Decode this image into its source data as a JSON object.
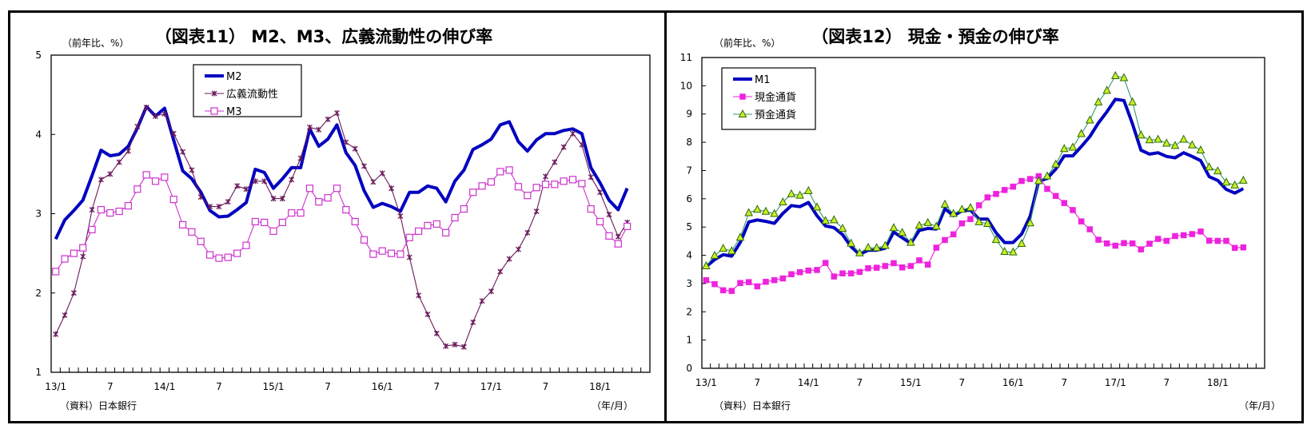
{
  "chart_data": [
    {
      "type": "line",
      "title": "（図表11） M2、M3、広義流動性の伸び率",
      "ylabel": "（前年比、%）",
      "xlabel": "（年/月）",
      "source": "（資料）日本銀行",
      "ylim": [
        1,
        5
      ],
      "yticks": [
        "1",
        "2",
        "3",
        "4",
        "5"
      ],
      "xtick_labels": [
        "13/1",
        "7",
        "14/1",
        "7",
        "15/1",
        "7",
        "16/1",
        "7",
        "17/1",
        "7",
        "18/1"
      ],
      "x_start": "2013/1",
      "x_end": "2018/4",
      "legend_position": "top-left",
      "series": [
        {
          "name": "M2",
          "color": "#0000c0",
          "marker": "none",
          "values": [
            2.68,
            2.92,
            3.04,
            3.17,
            3.48,
            3.8,
            3.73,
            3.75,
            3.85,
            4.08,
            4.35,
            4.23,
            4.33,
            3.93,
            3.54,
            3.44,
            3.27,
            3.04,
            2.96,
            2.97,
            3.05,
            3.14,
            3.56,
            3.52,
            3.32,
            3.44,
            3.58,
            3.58,
            4.07,
            3.85,
            3.94,
            4.12,
            3.77,
            3.61,
            3.29,
            3.08,
            3.13,
            3.09,
            3.03,
            3.27,
            3.27,
            3.35,
            3.32,
            3.15,
            3.41,
            3.55,
            3.81,
            3.87,
            3.94,
            4.12,
            4.16,
            3.91,
            3.79,
            3.93,
            4.01,
            4.01,
            4.05,
            4.07,
            4.01,
            3.58,
            3.39,
            3.17,
            3.05,
            3.32
          ]
        },
        {
          "name": "広義流動性",
          "color": "#6a1a5a",
          "marker": "star",
          "values": [
            1.48,
            1.72,
            2.0,
            2.46,
            3.05,
            3.43,
            3.5,
            3.65,
            3.79,
            4.1,
            4.34,
            4.23,
            4.26,
            4.01,
            3.78,
            3.55,
            3.21,
            3.09,
            3.09,
            3.15,
            3.35,
            3.31,
            3.41,
            3.41,
            3.19,
            3.19,
            3.43,
            3.7,
            4.09,
            4.06,
            4.19,
            4.27,
            3.9,
            3.82,
            3.6,
            3.4,
            3.51,
            3.32,
            2.97,
            2.45,
            1.97,
            1.73,
            1.49,
            1.33,
            1.35,
            1.32,
            1.63,
            1.9,
            2.02,
            2.27,
            2.43,
            2.55,
            2.76,
            3.03,
            3.47,
            3.65,
            3.84,
            4.01,
            3.87,
            3.46,
            3.27,
            2.99,
            2.71,
            2.89
          ]
        },
        {
          "name": "M3",
          "color": "#cc33cc",
          "marker": "open-square",
          "values": [
            2.27,
            2.43,
            2.5,
            2.57,
            2.8,
            3.05,
            3.01,
            3.03,
            3.1,
            3.31,
            3.49,
            3.41,
            3.46,
            3.18,
            2.86,
            2.77,
            2.65,
            2.48,
            2.44,
            2.45,
            2.5,
            2.6,
            2.9,
            2.89,
            2.78,
            2.89,
            3.01,
            3.01,
            3.32,
            3.15,
            3.2,
            3.32,
            3.05,
            2.9,
            2.67,
            2.49,
            2.53,
            2.5,
            2.49,
            2.7,
            2.78,
            2.85,
            2.87,
            2.76,
            2.95,
            3.06,
            3.27,
            3.35,
            3.4,
            3.53,
            3.55,
            3.34,
            3.23,
            3.33,
            3.37,
            3.37,
            3.41,
            3.43,
            3.38,
            3.06,
            2.9,
            2.72,
            2.62,
            2.84
          ]
        }
      ]
    },
    {
      "type": "line",
      "title": "（図表12） 現金・預金の伸び率",
      "ylabel": "（前年比、%）",
      "xlabel": "（年/月）",
      "source": "（資料）日本銀行",
      "ylim": [
        0,
        11
      ],
      "yticks": [
        "0",
        "1",
        "2",
        "3",
        "4",
        "5",
        "6",
        "7",
        "8",
        "9",
        "10",
        "11"
      ],
      "xtick_labels": [
        "13/1",
        "7",
        "14/1",
        "7",
        "15/1",
        "7",
        "16/1",
        "7",
        "17/1",
        "7",
        "18/1"
      ],
      "x_start": "2013/1",
      "x_end": "2018/4",
      "legend_position": "top-left",
      "series": [
        {
          "name": "M1",
          "color": "#0000c0",
          "marker": "none",
          "values": [
            3.6,
            3.85,
            4.02,
            3.97,
            4.45,
            5.18,
            5.25,
            5.2,
            5.13,
            5.48,
            5.76,
            5.72,
            5.87,
            5.4,
            5.04,
            4.98,
            4.73,
            4.3,
            4.03,
            4.18,
            4.18,
            4.25,
            4.82,
            4.62,
            4.42,
            4.88,
            4.95,
            4.93,
            5.65,
            5.4,
            5.57,
            5.6,
            5.28,
            5.28,
            4.8,
            4.45,
            4.45,
            4.75,
            5.38,
            6.62,
            6.72,
            7.05,
            7.52,
            7.52,
            7.85,
            8.2,
            8.68,
            9.08,
            9.52,
            9.48,
            8.65,
            7.72,
            7.58,
            7.63,
            7.5,
            7.45,
            7.63,
            7.5,
            7.35,
            6.78,
            6.65,
            6.33,
            6.2,
            6.36
          ]
        },
        {
          "name": "現金通貨",
          "color": "#ee22dd",
          "marker": "filled-square",
          "values": [
            3.12,
            2.98,
            2.76,
            2.74,
            3.02,
            3.05,
            2.9,
            3.06,
            3.12,
            3.18,
            3.33,
            3.4,
            3.46,
            3.48,
            3.73,
            3.25,
            3.36,
            3.36,
            3.41,
            3.54,
            3.56,
            3.62,
            3.72,
            3.57,
            3.62,
            3.82,
            3.67,
            4.27,
            4.54,
            4.74,
            5.13,
            5.28,
            5.77,
            6.05,
            6.17,
            6.31,
            6.43,
            6.63,
            6.7,
            6.8,
            6.35,
            6.1,
            5.85,
            5.6,
            5.2,
            4.92,
            4.55,
            4.42,
            4.34,
            4.43,
            4.42,
            4.21,
            4.41,
            4.58,
            4.51,
            4.68,
            4.71,
            4.75,
            4.84,
            4.52,
            4.51,
            4.51,
            4.26,
            4.28
          ]
        },
        {
          "name": "預金通貨",
          "color": "#339966",
          "marker": "triangle",
          "marker_fill": "#ccee22",
          "values": [
            3.62,
            3.99,
            4.24,
            4.15,
            4.63,
            5.5,
            5.62,
            5.55,
            5.47,
            5.88,
            6.17,
            6.12,
            6.28,
            5.7,
            5.22,
            5.25,
            4.95,
            4.42,
            4.08,
            4.27,
            4.26,
            4.34,
            4.97,
            4.8,
            4.45,
            5.05,
            5.15,
            5.02,
            5.8,
            5.47,
            5.62,
            5.68,
            5.18,
            5.12,
            4.55,
            4.13,
            4.11,
            4.41,
            5.14,
            6.63,
            6.8,
            7.22,
            7.77,
            7.82,
            8.3,
            8.78,
            9.42,
            9.83,
            10.35,
            10.28,
            9.42,
            8.25,
            8.08,
            8.1,
            7.96,
            7.88,
            8.1,
            7.9,
            7.72,
            7.12,
            6.98,
            6.58,
            6.48,
            6.65
          ]
        }
      ]
    }
  ]
}
